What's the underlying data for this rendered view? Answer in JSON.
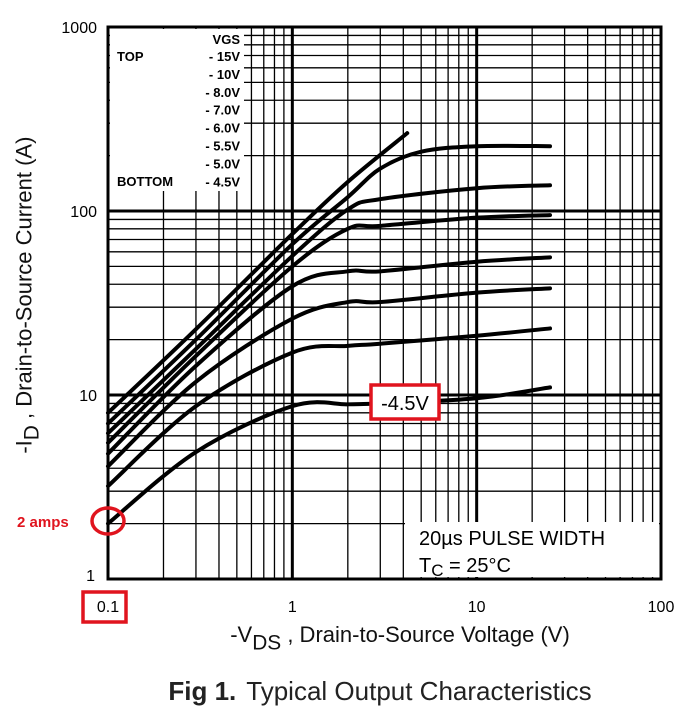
{
  "chart_data": {
    "type": "line",
    "title": "",
    "caption_prefix": "Fig 1.",
    "caption": "Typical Output Characteristics",
    "xlabel_prefix": "-V",
    "xlabel_sub": "DS",
    "xlabel_rest": " , Drain-to-Source Voltage (V)",
    "ylabel_prefix": "-I",
    "ylabel_sub": "D",
    "ylabel_rest": " , Drain-to-Source Current (A)",
    "xscale": "log",
    "yscale": "log",
    "xlim": [
      0.1,
      100
    ],
    "ylim": [
      1,
      1000
    ],
    "xticks": [
      "0.1",
      "1",
      "10",
      "100"
    ],
    "yticks": [
      "1",
      "10",
      "100",
      "1000"
    ],
    "grid": true,
    "legend": {
      "placement": "top-left",
      "header": "VGS",
      "top_label": "TOP",
      "bottom_label": "BOTTOM",
      "entries": [
        "- 15V",
        "- 10V",
        "- 8.0V",
        "- 7.0V",
        "- 6.0V",
        "- 5.5V",
        "- 5.0V",
        "- 4.5V"
      ]
    },
    "conditions": {
      "line1": "20µs PULSE WIDTH",
      "line2_prefix": "T",
      "line2_sub": "C",
      "line2_rest": " = 25°C"
    },
    "series": [
      {
        "name": "- 15V",
        "x": [
          0.1,
          0.3,
          1,
          2,
          4.2
        ],
        "y": [
          8,
          22.8,
          75,
          144,
          265
        ]
      },
      {
        "name": "- 10V",
        "x": [
          0.1,
          0.3,
          1,
          2,
          3,
          5,
          10,
          25
        ],
        "y": [
          7,
          20,
          66,
          119,
          170,
          210,
          225,
          225
        ]
      },
      {
        "name": "- 8.0V",
        "x": [
          0.1,
          0.3,
          1,
          2,
          3,
          10,
          25
        ],
        "y": [
          6.2,
          17.8,
          57,
          102,
          116,
          133,
          138
        ]
      },
      {
        "name": "- 7.0V",
        "x": [
          0.1,
          0.3,
          1,
          2,
          3,
          10,
          25
        ],
        "y": [
          5.5,
          16.3,
          50,
          80,
          83,
          92,
          95
        ]
      },
      {
        "name": "- 6.0V",
        "x": [
          0.1,
          0.3,
          1,
          2,
          3,
          10,
          25
        ],
        "y": [
          4.8,
          14.4,
          39,
          47,
          47,
          53,
          56
        ]
      },
      {
        "name": "- 5.5V",
        "x": [
          0.1,
          0.3,
          1,
          2,
          3,
          10,
          25
        ],
        "y": [
          4.1,
          11.8,
          26,
          32,
          32,
          36,
          38
        ]
      },
      {
        "name": "- 5.0V",
        "x": [
          0.1,
          0.3,
          1,
          2,
          3,
          10,
          25
        ],
        "y": [
          3.2,
          8.7,
          17,
          18.5,
          19,
          21,
          23
        ]
      },
      {
        "name": "- 4.5V",
        "x": [
          0.1,
          0.3,
          1,
          2,
          3,
          10,
          25
        ],
        "y": [
          2.0,
          4.9,
          8.7,
          8.9,
          9.0,
          9.6,
          11
        ]
      }
    ],
    "annotations": {
      "curve_label": "-4.5V",
      "start_point_label": "2 amps",
      "highlighted_tick": "0.1",
      "color": "#e0141e"
    }
  }
}
